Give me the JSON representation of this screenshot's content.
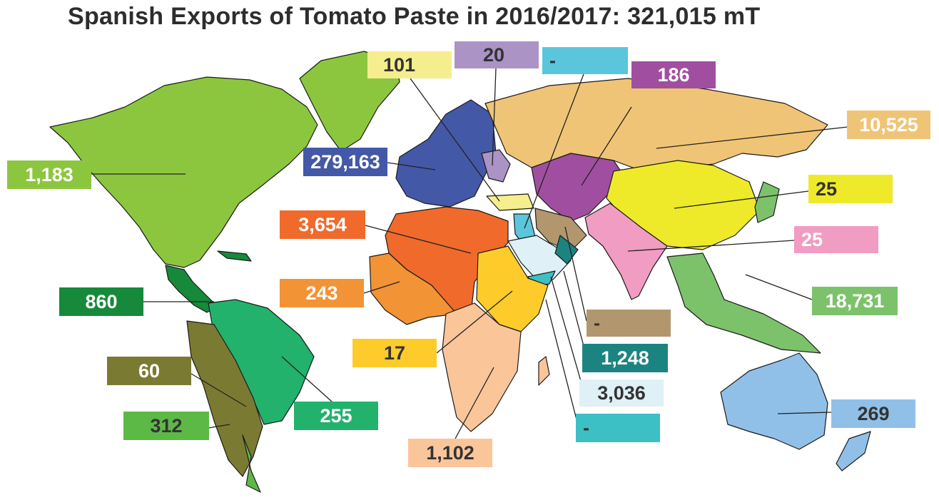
{
  "title": "Spanish Exports of Tomato Paste in  2016/2017: 321,015 mT",
  "regions": [
    {
      "id": "north-america",
      "value": "1,183",
      "color": "#8cc63f",
      "text": "#ffffff"
    },
    {
      "id": "central-america-caribbean",
      "value": "860",
      "color": "#168a3a",
      "text": "#ffffff"
    },
    {
      "id": "andean-south-america",
      "value": "60",
      "color": "#7b7a32",
      "text": "#ffffff"
    },
    {
      "id": "southern-cone",
      "value": "312",
      "color": "#5db946",
      "text": "#333333"
    },
    {
      "id": "brazil-region",
      "value": "255",
      "color": "#22b26c",
      "text": "#ffffff"
    },
    {
      "id": "european-union",
      "value": "279,163",
      "color": "#4358a6",
      "text": "#ffffff"
    },
    {
      "id": "other-europe-west",
      "value": "101",
      "color": "#f4ee8e",
      "text": "#333333"
    },
    {
      "id": "other-europe-east",
      "value": "20",
      "color": "#ab93c6",
      "text": "#333333"
    },
    {
      "id": "caucasus-levant",
      "value": "-",
      "color": "#5bc5dc",
      "text": "#333333"
    },
    {
      "id": "central-asia",
      "value": "186",
      "color": "#a04fa0",
      "text": "#ffffff"
    },
    {
      "id": "russia",
      "value": "10,525",
      "color": "#f0c476",
      "text": "#ffffff"
    },
    {
      "id": "east-asia",
      "value": "25",
      "color": "#eeea2a",
      "text": "#333333"
    },
    {
      "id": "south-asia",
      "value": "25",
      "color": "#f19cc2",
      "text": "#ffffff"
    },
    {
      "id": "southeast-asia",
      "value": "18,731",
      "color": "#7cc26a",
      "text": "#ffffff"
    },
    {
      "id": "north-africa",
      "value": "3,654",
      "color": "#f06a2c",
      "text": "#ffffff"
    },
    {
      "id": "west-africa",
      "value": "243",
      "color": "#f29335",
      "text": "#ffffff"
    },
    {
      "id": "east-africa",
      "value": "17",
      "color": "#fdcc2a",
      "text": "#333333"
    },
    {
      "id": "southern-africa",
      "value": "1,102",
      "color": "#fbc59a",
      "text": "#333333"
    },
    {
      "id": "iran-region",
      "value": "-",
      "color": "#b2976e",
      "text": "#333333"
    },
    {
      "id": "arabian-gulf",
      "value": "1,248",
      "color": "#1c8480",
      "text": "#ffffff"
    },
    {
      "id": "saudi-arabia",
      "value": "3,036",
      "color": "#dff0f7",
      "text": "#333333"
    },
    {
      "id": "red-sea-states",
      "value": "-",
      "color": "#3dc0c4",
      "text": "#333333"
    },
    {
      "id": "oceania",
      "value": "269",
      "color": "#90c0e8",
      "text": "#333333"
    }
  ]
}
